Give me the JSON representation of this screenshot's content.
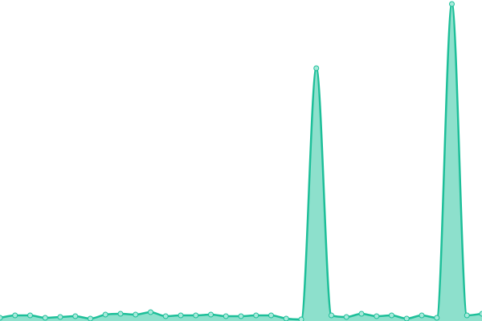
{
  "chart_data": {
    "type": "area",
    "values": [
      4,
      7,
      7,
      4,
      5,
      6,
      3,
      8,
      9,
      8,
      11,
      6,
      7,
      7,
      8,
      6,
      6,
      7,
      7,
      3,
      2,
      315,
      7,
      5,
      9,
      6,
      7,
      3,
      7,
      4,
      395,
      7,
      9
    ],
    "ylim": [
      0,
      400
    ],
    "color": "#1dbf99",
    "fill_color": "#8de0cc",
    "marker_fill": "#a8eadb"
  }
}
